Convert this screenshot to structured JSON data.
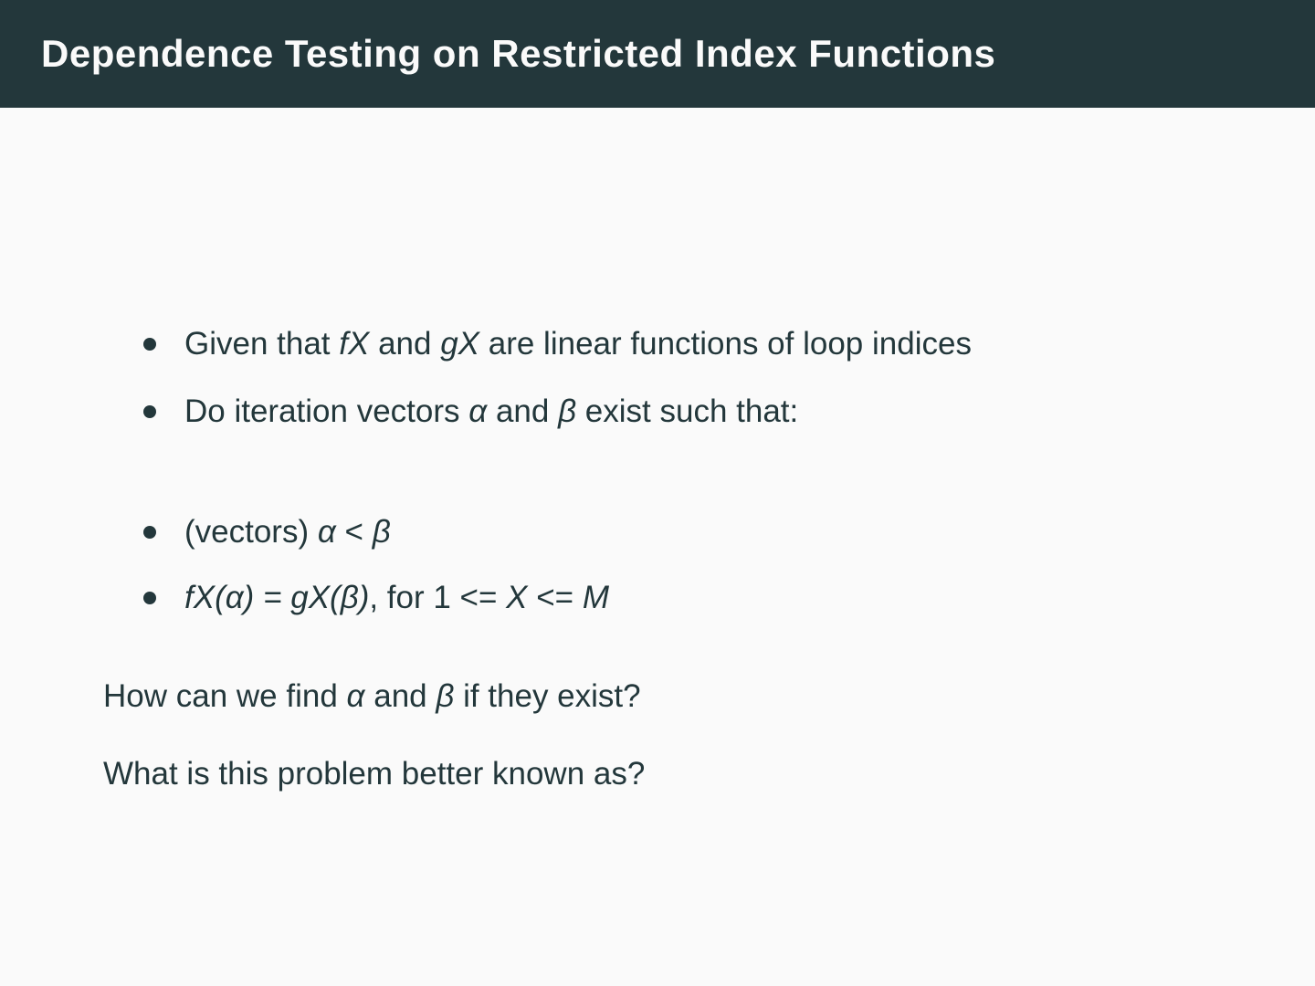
{
  "colors": {
    "header_bg": "#23373b",
    "body_bg": "#fafafa",
    "text": "#23373b",
    "title_text": "#fafafa"
  },
  "header": {
    "title": "Dependence Testing on Restricted Index Functions"
  },
  "lines": {
    "b1": {
      "segments": [
        {
          "t": "Given that "
        },
        {
          "t": "fX",
          "m": true
        },
        {
          "t": " and "
        },
        {
          "t": "gX",
          "m": true
        },
        {
          "t": " are linear functions of loop indices"
        }
      ]
    },
    "b2": {
      "segments": [
        {
          "t": "Do iteration vectors "
        },
        {
          "t": "α",
          "m": true
        },
        {
          "t": " and "
        },
        {
          "t": "β",
          "m": true
        },
        {
          "t": " exist such that:"
        }
      ]
    },
    "b3": {
      "segments": [
        {
          "t": "(vectors) "
        },
        {
          "t": "α",
          "m": true
        },
        {
          "t": " < "
        },
        {
          "t": "β",
          "m": true
        }
      ]
    },
    "b4": {
      "segments": [
        {
          "t": "fX(α) = gX(β)",
          "m": true
        },
        {
          "t": ", for 1 <= "
        },
        {
          "t": "X",
          "m": true
        },
        {
          "t": " <= "
        },
        {
          "t": "M",
          "m": true
        }
      ]
    },
    "q1": {
      "segments": [
        {
          "t": "How can we find "
        },
        {
          "t": "α",
          "m": true
        },
        {
          "t": " and "
        },
        {
          "t": "β",
          "m": true
        },
        {
          "t": " if they exist?"
        }
      ]
    },
    "q2": {
      "segments": [
        {
          "t": "What is this problem better known as?"
        }
      ]
    }
  }
}
